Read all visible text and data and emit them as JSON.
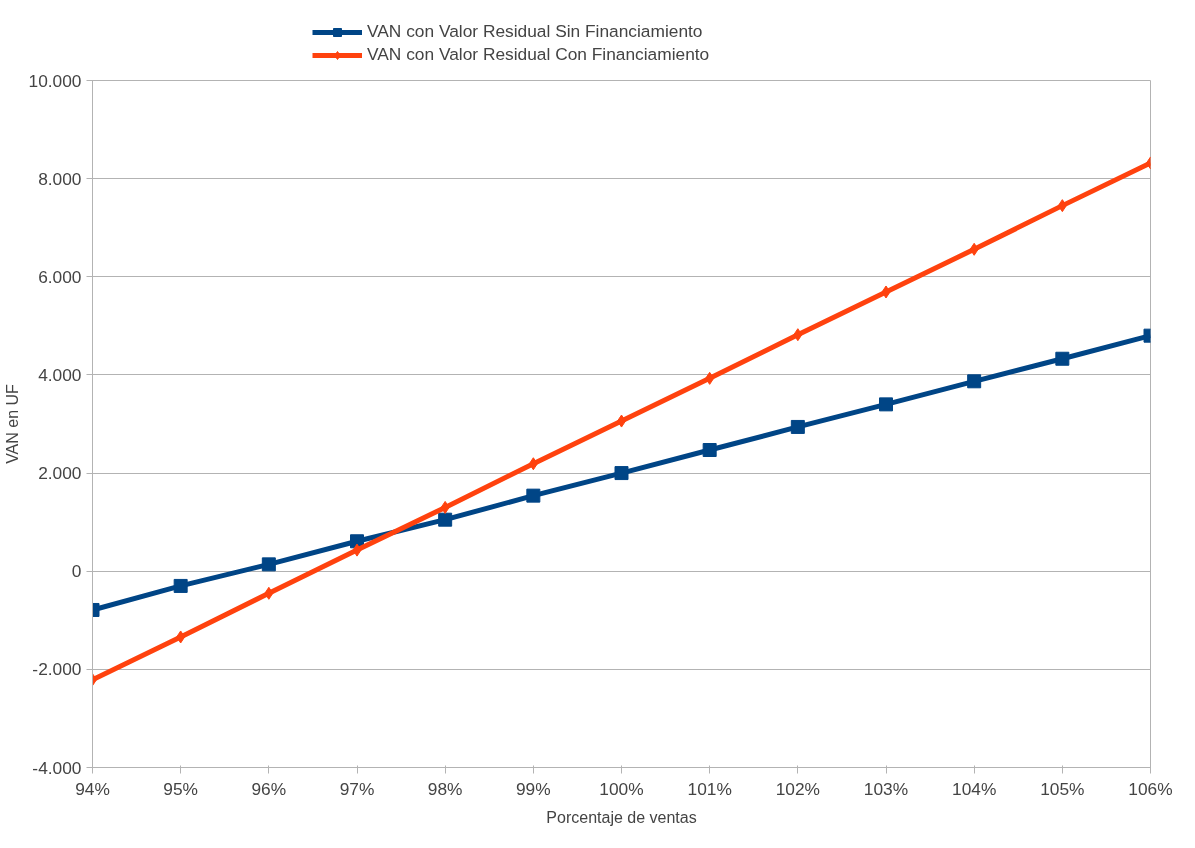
{
  "chart_data": {
    "type": "line",
    "xlabel": "Porcentaje de ventas",
    "ylabel": "VAN en UF",
    "categories": [
      "94%",
      "95%",
      "96%",
      "97%",
      "98%",
      "99%",
      "100%",
      "101%",
      "102%",
      "103%",
      "104%",
      "105%",
      "106%"
    ],
    "series": [
      {
        "name": "VAN con Valor Residual Sin Financiamiento",
        "color": "#004586",
        "marker": "square",
        "values": [
          -790,
          -300,
          140,
          610,
          1050,
          1540,
          2000,
          2470,
          2940,
          3400,
          3870,
          4330,
          4800
        ]
      },
      {
        "name": "VAN con Valor Residual Con Financiamiento",
        "color": "#ff420e",
        "marker": "diamond",
        "values": [
          -2210,
          -1340,
          -450,
          430,
          1300,
          2190,
          3060,
          3930,
          4820,
          5690,
          6560,
          7450,
          8320
        ]
      }
    ],
    "ylim": [
      -4000,
      10000
    ],
    "yticks": [
      {
        "value": -4000,
        "label": "-4.000"
      },
      {
        "value": -2000,
        "label": "-2.000"
      },
      0,
      {
        "value": 2000,
        "label": "2.000"
      },
      {
        "value": 4000,
        "label": "4.000"
      },
      {
        "value": 6000,
        "label": "6.000"
      },
      {
        "value": 8000,
        "label": "8.000"
      },
      {
        "value": 10000,
        "label": "10.000"
      }
    ],
    "grid": "y",
    "legend": "top",
    "line_style": "solid"
  }
}
